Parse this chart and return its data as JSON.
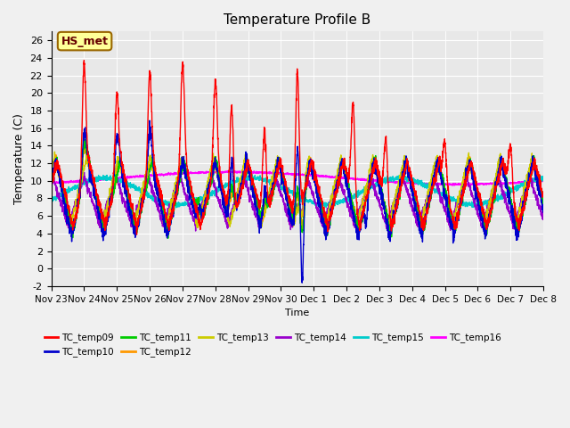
{
  "title": "Temperature Profile B",
  "xlabel": "Time",
  "ylabel": "Temperature (C)",
  "annotation": "HS_met",
  "ylim": [
    -2,
    27
  ],
  "xlim": [
    0,
    15
  ],
  "series_colors": {
    "TC_temp09": "#ff0000",
    "TC_temp10": "#0000cc",
    "TC_temp11": "#00cc00",
    "TC_temp12": "#ff9900",
    "TC_temp13": "#cccc00",
    "TC_temp14": "#9900cc",
    "TC_temp15": "#00cccc",
    "TC_temp16": "#ff00ff"
  },
  "xtick_labels": [
    "Nov 23",
    "Nov 24",
    "Nov 25",
    "Nov 26",
    "Nov 27",
    "Nov 28",
    "Nov 29",
    "Nov 30",
    "Dec 1",
    "Dec 2",
    "Dec 3",
    "Dec 4",
    "Dec 5",
    "Dec 6",
    "Dec 7",
    "Dec 8"
  ],
  "ytick_vals": [
    -2,
    0,
    2,
    4,
    6,
    8,
    10,
    12,
    14,
    16,
    18,
    20,
    22,
    24,
    26
  ],
  "fig_bg_color": "#f0f0f0",
  "plot_bg_color": "#e8e8e8",
  "grid_color": "#ffffff",
  "linewidth": 1.0
}
